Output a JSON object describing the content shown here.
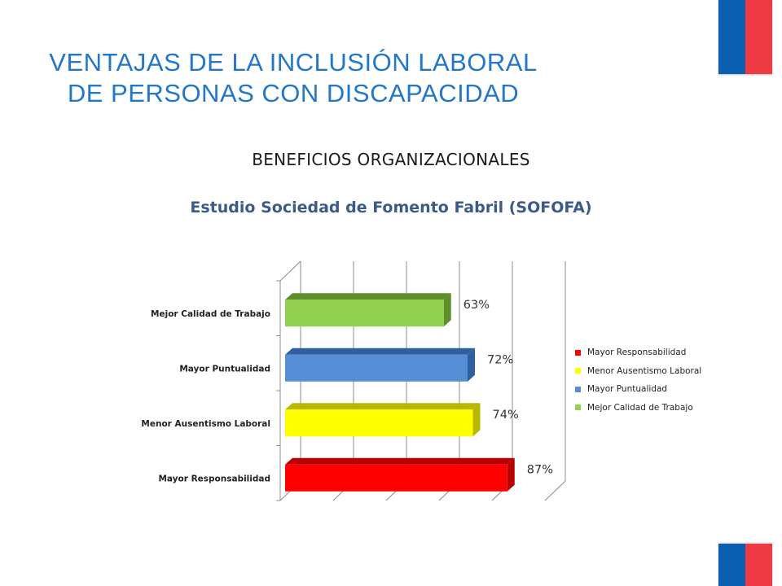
{
  "header": {
    "title_line1": "VENTAJAS DE LA INCLUSIÓN LABORAL",
    "title_line2": "DE PERSONAS CON DISCAPACIDAD",
    "subtitle": "BENEFICIOS ORGANIZACIONALES"
  },
  "flag_colors": {
    "blue": "#0b5fb0",
    "red": "#ee3a43"
  },
  "chart_data": {
    "type": "bar",
    "orientation": "horizontal",
    "three_d": true,
    "title": "Estudio Sociedad de Fomento Fabril (SOFOFA)",
    "categories": [
      "Mayor Responsabilidad",
      "Menor Ausentismo Laboral",
      "Mayor Puntualidad",
      "Mejor Calidad de Trabajo"
    ],
    "values": [
      87,
      74,
      72,
      63
    ],
    "value_labels": [
      "87%",
      "74%",
      "72%",
      "63%"
    ],
    "colors": [
      "#ff0000",
      "#ffff00",
      "#558ed5",
      "#92d050"
    ],
    "side_colors": [
      "#b80000",
      "#b8b800",
      "#2f5f9e",
      "#5f8f2a"
    ],
    "xlim": [
      0,
      100
    ],
    "grid": true,
    "legend": {
      "position": "right",
      "entries": [
        "Mayor Responsabilidad",
        "Menor Ausentismo Laboral",
        "Mayor Puntualidad",
        "Mejor Calidad de Trabajo"
      ]
    }
  }
}
